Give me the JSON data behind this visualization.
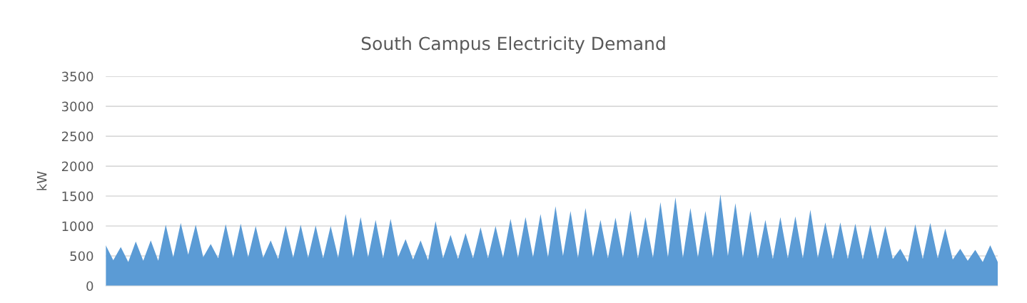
{
  "chart_data": {
    "type": "area",
    "title": "South Campus Electricity Demand",
    "ylabel": "kW",
    "categories": [
      null,
      null,
      null,
      null,
      null,
      null,
      null,
      null,
      null,
      null,
      null,
      null,
      null,
      null,
      null,
      null,
      null,
      null,
      null,
      null,
      null,
      null,
      null,
      null,
      null,
      null,
      null,
      null,
      null,
      null,
      null,
      null,
      null,
      null,
      null,
      null,
      null,
      null,
      null,
      null,
      null,
      null,
      null,
      null,
      null,
      null,
      null,
      null,
      null,
      null,
      null,
      null,
      null,
      null,
      null,
      null,
      null,
      null,
      null,
      null,
      null,
      null,
      null,
      null,
      null,
      null,
      null,
      null,
      null,
      null,
      null,
      null,
      null,
      null,
      null,
      null,
      null,
      null,
      null,
      null,
      null,
      null,
      null,
      null,
      null,
      null,
      null,
      null,
      null,
      null,
      null,
      null,
      null,
      null,
      null,
      null,
      null,
      null,
      null,
      null,
      null,
      null,
      null,
      null,
      null,
      null,
      null,
      null,
      null,
      null,
      null,
      null,
      null,
      null,
      null,
      null,
      null,
      null,
      null,
      null
    ],
    "series": [
      {
        "color": "#5b9bd5",
        "values": [
          680,
          430,
          650,
          400,
          740,
          420,
          760,
          420,
          1020,
          480,
          1050,
          520,
          1020,
          480,
          700,
          460,
          1030,
          470,
          1040,
          480,
          1000,
          470,
          760,
          450,
          1010,
          470,
          1020,
          470,
          1010,
          460,
          1000,
          470,
          1200,
          470,
          1150,
          480,
          1100,
          460,
          1120,
          480,
          780,
          440,
          760,
          430,
          1080,
          460,
          850,
          450,
          880,
          460,
          980,
          460,
          1000,
          470,
          1120,
          470,
          1150,
          480,
          1200,
          480,
          1330,
          500,
          1250,
          470,
          1300,
          480,
          1100,
          460,
          1140,
          470,
          1260,
          460,
          1150,
          470,
          1400,
          480,
          1480,
          470,
          1300,
          480,
          1250,
          470,
          1530,
          500,
          1380,
          470,
          1250,
          460,
          1100,
          450,
          1150,
          460,
          1160,
          460,
          1270,
          470,
          1060,
          450,
          1060,
          450,
          1040,
          440,
          1020,
          450,
          1000,
          450,
          620,
          400,
          1030,
          450,
          1050,
          460,
          960,
          440,
          620,
          420,
          600,
          400,
          680,
          400
        ]
      }
    ],
    "ylim": [
      0,
      3500
    ],
    "yticks": [
      0,
      500,
      1000,
      1500,
      2000,
      2500,
      3000,
      3500
    ],
    "grid": "y"
  }
}
